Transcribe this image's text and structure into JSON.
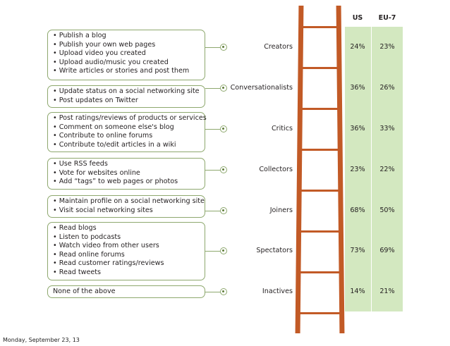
{
  "headers": {
    "us": "US",
    "eu": "EU-7"
  },
  "rows": [
    {
      "category": "Creators",
      "us": "24%",
      "eu": "23%",
      "activities": [
        "Publish a blog",
        "Publish your own web pages",
        "Upload video you created",
        "Upload audio/music you created",
        "Write articles or stories and post them"
      ]
    },
    {
      "category": "Conversationalists",
      "us": "36%",
      "eu": "26%",
      "activities": [
        "Update status on a social networking site",
        "Post updates on Twitter"
      ]
    },
    {
      "category": "Critics",
      "us": "36%",
      "eu": "33%",
      "activities": [
        "Post ratings/reviews of products or services",
        "Comment on someone else's blog",
        "Contribute to online forums",
        "Contribute to/edit articles in a wiki"
      ]
    },
    {
      "category": "Collectors",
      "us": "23%",
      "eu": "22%",
      "activities": [
        "Use RSS feeds",
        "Vote for websites online",
        "Add “tags” to web pages or photos"
      ]
    },
    {
      "category": "Joiners",
      "us": "68%",
      "eu": "50%",
      "activities": [
        "Maintain profile on a social networking site",
        "Visit social networking sites"
      ]
    },
    {
      "category": "Spectators",
      "us": "73%",
      "eu": "69%",
      "activities": [
        "Read blogs",
        "Listen to podcasts",
        "Watch video from other users",
        "Read online forums",
        "Read customer ratings/reviews",
        "Read tweets"
      ]
    },
    {
      "category": "Inactives",
      "us": "14%",
      "eu": "21%",
      "activities": [
        "None of the above"
      ]
    }
  ],
  "footer": "Monday, September 23, 13"
}
